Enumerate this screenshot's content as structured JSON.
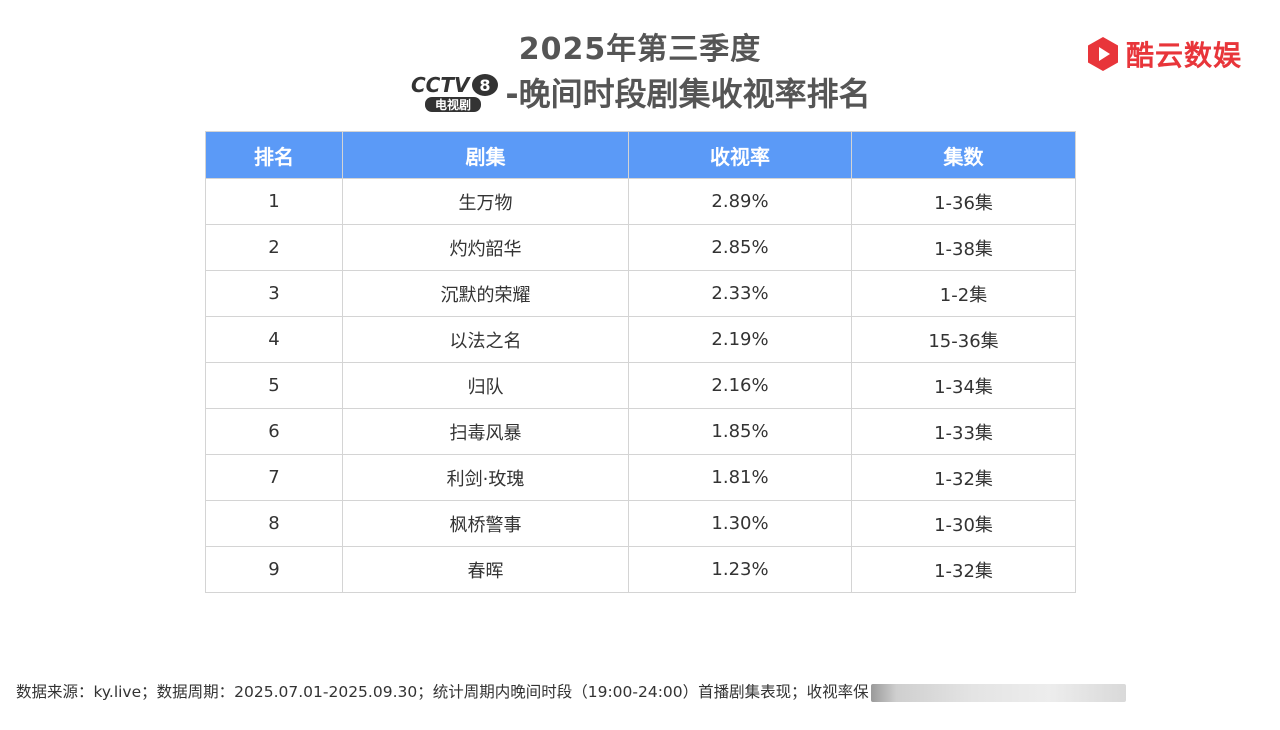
{
  "header": {
    "title_line1": "2025年第三季度",
    "title_line2": "-晚间时段剧集收视率排名",
    "channel_logo": {
      "main": "CCTV",
      "number": "8",
      "sub": "电视剧"
    },
    "brand_name": "酷云数娱",
    "brand_color": "#e8353a"
  },
  "table": {
    "header_color": "#5b9af7",
    "columns": [
      "排名",
      "剧集",
      "收视率",
      "集数"
    ],
    "rows": [
      {
        "rank": "1",
        "drama": "生万物",
        "rating": "2.89%",
        "episodes": "1-36集"
      },
      {
        "rank": "2",
        "drama": "灼灼韶华",
        "rating": "2.85%",
        "episodes": "1-38集"
      },
      {
        "rank": "3",
        "drama": "沉默的荣耀",
        "rating": "2.33%",
        "episodes": "1-2集"
      },
      {
        "rank": "4",
        "drama": "以法之名",
        "rating": "2.19%",
        "episodes": "15-36集"
      },
      {
        "rank": "5",
        "drama": "归队",
        "rating": "2.16%",
        "episodes": "1-34集"
      },
      {
        "rank": "6",
        "drama": "扫毒风暴",
        "rating": "1.85%",
        "episodes": "1-33集"
      },
      {
        "rank": "7",
        "drama": "利剑·玫瑰",
        "rating": "1.81%",
        "episodes": "1-32集"
      },
      {
        "rank": "8",
        "drama": "枫桥警事",
        "rating": "1.30%",
        "episodes": "1-30集"
      },
      {
        "rank": "9",
        "drama": "春晖",
        "rating": "1.23%",
        "episodes": "1-32集"
      }
    ]
  },
  "footer": {
    "note": "数据来源：ky.live；数据周期：2025.07.01-2025.09.30；统计周期内晚间时段（19:00-24:00）首播剧集表现；收视率保"
  }
}
